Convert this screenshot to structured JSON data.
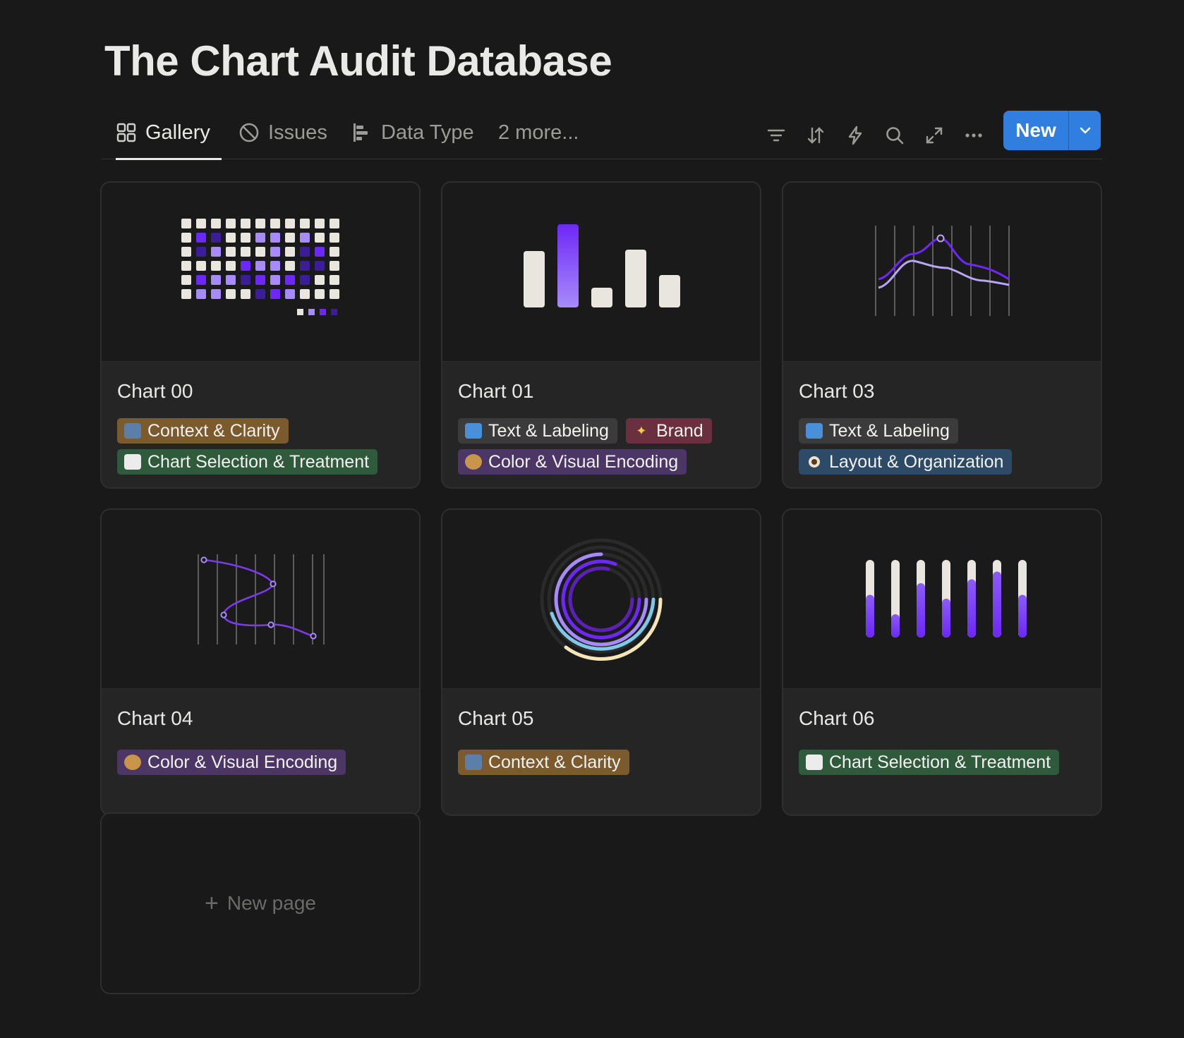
{
  "page": {
    "title": "The Chart Audit Database"
  },
  "tabs": [
    {
      "label": "Gallery",
      "icon": "gallery-icon"
    },
    {
      "label": "Issues",
      "icon": "prohibited-icon"
    },
    {
      "label": "Data Type",
      "icon": "bar-chart-icon"
    },
    {
      "label": "2 more..."
    }
  ],
  "toolbar": {
    "tools": [
      "filter-icon",
      "sort-icon",
      "lightning-icon",
      "search-icon",
      "expand-icon",
      "more-icon"
    ],
    "new_label": "New"
  },
  "colors": {
    "accent": "#2f7ee0",
    "purple": "#7b3ff2",
    "lavender": "#a78bfa",
    "light": "#e8e6df"
  },
  "cards": [
    {
      "title": "Chart 00",
      "preview": "waffle-grid",
      "tags": [
        {
          "label": "Context & Clarity",
          "emoji": "🗺",
          "color": "brown"
        },
        {
          "label": "Chart Selection & Treatment",
          "emoji": "📊",
          "color": "green"
        }
      ]
    },
    {
      "title": "Chart 01",
      "preview": "bar-chart",
      "tags": [
        {
          "label": "Text & Labeling",
          "emoji": "🔤",
          "color": "gray"
        },
        {
          "label": "Brand",
          "emoji": "💫",
          "color": "red"
        },
        {
          "label": "Color & Visual Encoding",
          "emoji": "🎨",
          "color": "purple"
        }
      ]
    },
    {
      "title": "Chart 03",
      "preview": "line-chart",
      "tags": [
        {
          "label": "Text & Labeling",
          "emoji": "🔤",
          "color": "gray"
        },
        {
          "label": "Layout & Organization",
          "emoji": "👁",
          "color": "blue"
        }
      ]
    },
    {
      "title": "Chart 04",
      "preview": "curve-chart",
      "tags": [
        {
          "label": "Color & Visual Encoding",
          "emoji": "🎨",
          "color": "purple"
        }
      ]
    },
    {
      "title": "Chart 05",
      "preview": "radial-chart",
      "tags": [
        {
          "label": "Context & Clarity",
          "emoji": "🗺",
          "color": "brown"
        }
      ]
    },
    {
      "title": "Chart 06",
      "preview": "bar-gauges",
      "tags": [
        {
          "label": "Chart Selection & Treatment",
          "emoji": "📊",
          "color": "green"
        }
      ]
    }
  ],
  "new_page": {
    "label": "New page"
  }
}
